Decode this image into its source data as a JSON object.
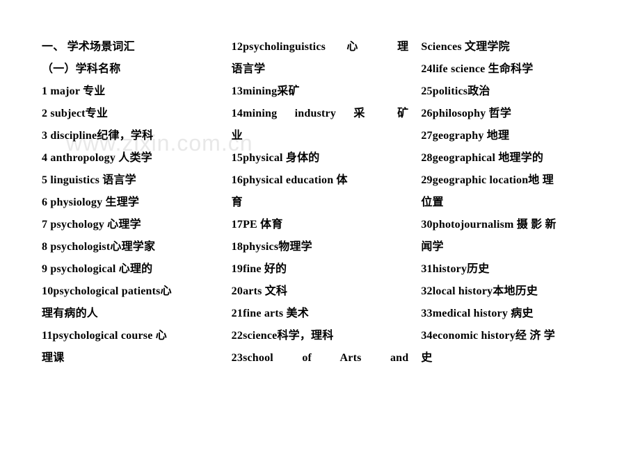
{
  "watermark": "www.zixin.com.cn",
  "columns": [
    {
      "lines": [
        {
          "text": "一、 学术场景词汇",
          "justify": false
        },
        {
          "text": "（一）学科名称",
          "justify": false
        },
        {
          "text": "1  major  专业",
          "justify": false
        },
        {
          "text": "2  subject专业",
          "justify": false
        },
        {
          "text": "3  discipline纪律，学科",
          "justify": false
        },
        {
          "text": "4  anthropology  人类学",
          "justify": false
        },
        {
          "text": "5  linguistics   语言学",
          "justify": false
        },
        {
          "text": "6  physiology   生理学",
          "justify": false
        },
        {
          "text": "7  psychology  心理学",
          "justify": false
        },
        {
          "text": "8  psychologist心理学家",
          "justify": false
        },
        {
          "text": "9  psychological  心理的",
          "justify": false
        },
        {
          "text": "10psychological patients心",
          "justify": false
        },
        {
          "text": "理有病的人",
          "justify": false
        },
        {
          "text": "11psychological course   心",
          "justify": false
        },
        {
          "text": "理课",
          "justify": false
        }
      ]
    },
    {
      "lines": [
        {
          "text": "12psycholinguistics 心 理",
          "justify": true
        },
        {
          "text": "语言学",
          "justify": false
        },
        {
          "text": "13mining采矿",
          "justify": false
        },
        {
          "text": "14mining industry 采 矿",
          "justify": true
        },
        {
          "text": "业",
          "justify": false
        },
        {
          "text": "15physical  身体的",
          "justify": false
        },
        {
          "text": "16physical education  体",
          "justify": false
        },
        {
          "text": "育",
          "justify": false
        },
        {
          "text": "17PE   体育",
          "justify": false
        },
        {
          "text": "18physics物理学",
          "justify": false
        },
        {
          "text": "19fine  好的",
          "justify": false
        },
        {
          "text": "20arts  文科",
          "justify": false
        },
        {
          "text": "21fine arts  美术",
          "justify": false
        },
        {
          "text": "22science科学，理科",
          "justify": false
        },
        {
          "text": "23school  of  Arts  and",
          "justify": true
        }
      ]
    },
    {
      "lines": [
        {
          "text": "Sciences  文理学院",
          "justify": false
        },
        {
          "text": "24life science   生命科学",
          "justify": false
        },
        {
          "text": "25politics政治",
          "justify": false
        },
        {
          "text": "26philosophy  哲学",
          "justify": false
        },
        {
          "text": "27geography   地理",
          "justify": false
        },
        {
          "text": "28geographical   地理学的",
          "justify": false
        },
        {
          "text": "29geographic location地 理",
          "justify": false
        },
        {
          "text": "位置",
          "justify": false
        },
        {
          "text": "30photojournalism 摄 影 新",
          "justify": false
        },
        {
          "text": "闻学",
          "justify": false
        },
        {
          "text": "31history历史",
          "justify": false
        },
        {
          "text": "32local history本地历史",
          "justify": false
        },
        {
          "text": "33medical history   病史",
          "justify": false
        },
        {
          "text": "34economic history经 济 学",
          "justify": false
        },
        {
          "text": "史",
          "justify": false
        }
      ]
    }
  ]
}
